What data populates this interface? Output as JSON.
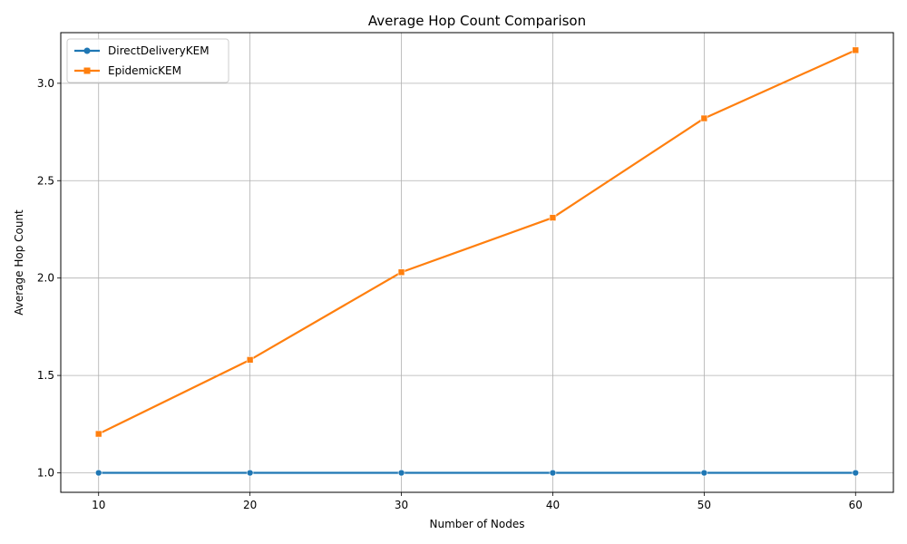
{
  "chart_data": {
    "type": "line",
    "title": "Average Hop Count Comparison",
    "xlabel": "Number of Nodes",
    "ylabel": "Average Hop Count",
    "x": [
      10,
      20,
      30,
      40,
      50,
      60
    ],
    "x_ticks": [
      "10",
      "20",
      "30",
      "40",
      "50",
      "60"
    ],
    "y_ticks": [
      "1.0",
      "1.5",
      "2.0",
      "2.5",
      "3.0"
    ],
    "xlim": [
      7.5,
      62.5
    ],
    "ylim": [
      0.9,
      3.26
    ],
    "grid": true,
    "legend_position": "top-left",
    "series": [
      {
        "name": "DirectDeliveryKEM",
        "marker": "circle",
        "color": "#1f77b4",
        "values": [
          1.0,
          1.0,
          1.0,
          1.0,
          1.0,
          1.0
        ]
      },
      {
        "name": "EpidemicKEM",
        "marker": "square",
        "color": "#ff7f0e",
        "values": [
          1.2,
          1.58,
          2.03,
          2.31,
          2.82,
          3.17
        ]
      }
    ]
  }
}
